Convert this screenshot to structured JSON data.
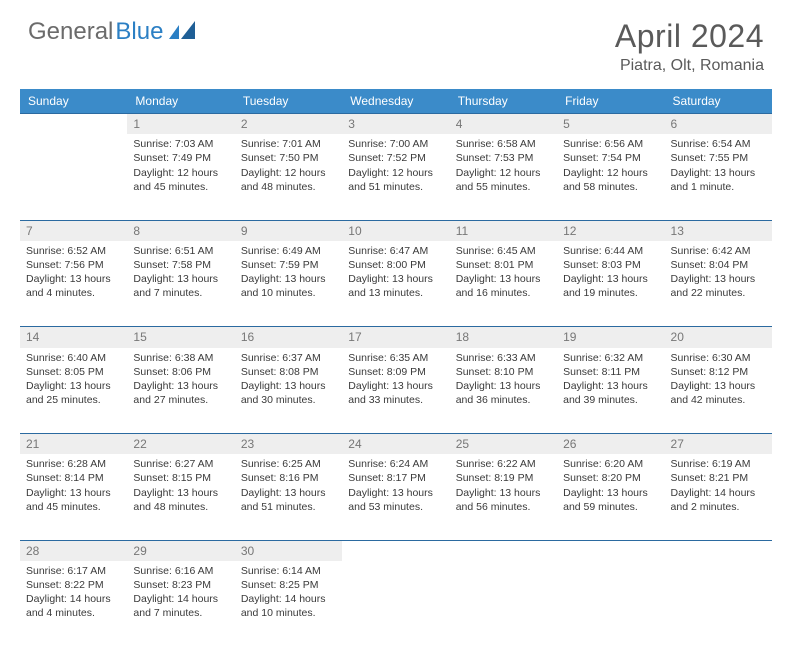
{
  "brand": {
    "part1": "General",
    "part2": "Blue"
  },
  "title": "April 2024",
  "location": "Piatra, Olt, Romania",
  "colors": {
    "header_bg": "#3b8bc9",
    "daynum_bg": "#eeeeee",
    "row_border": "#2b6aa0",
    "text": "#3a3a3a",
    "title_text": "#5a5a5a",
    "logo_gray": "#6b6b6b",
    "logo_blue": "#2b7fc4"
  },
  "weekdays": [
    "Sunday",
    "Monday",
    "Tuesday",
    "Wednesday",
    "Thursday",
    "Friday",
    "Saturday"
  ],
  "weeks": [
    {
      "nums": [
        "",
        "1",
        "2",
        "3",
        "4",
        "5",
        "6"
      ],
      "cells": [
        null,
        {
          "sr": "Sunrise: 7:03 AM",
          "ss": "Sunset: 7:49 PM",
          "d1": "Daylight: 12 hours",
          "d2": "and 45 minutes."
        },
        {
          "sr": "Sunrise: 7:01 AM",
          "ss": "Sunset: 7:50 PM",
          "d1": "Daylight: 12 hours",
          "d2": "and 48 minutes."
        },
        {
          "sr": "Sunrise: 7:00 AM",
          "ss": "Sunset: 7:52 PM",
          "d1": "Daylight: 12 hours",
          "d2": "and 51 minutes."
        },
        {
          "sr": "Sunrise: 6:58 AM",
          "ss": "Sunset: 7:53 PM",
          "d1": "Daylight: 12 hours",
          "d2": "and 55 minutes."
        },
        {
          "sr": "Sunrise: 6:56 AM",
          "ss": "Sunset: 7:54 PM",
          "d1": "Daylight: 12 hours",
          "d2": "and 58 minutes."
        },
        {
          "sr": "Sunrise: 6:54 AM",
          "ss": "Sunset: 7:55 PM",
          "d1": "Daylight: 13 hours",
          "d2": "and 1 minute."
        }
      ]
    },
    {
      "nums": [
        "7",
        "8",
        "9",
        "10",
        "11",
        "12",
        "13"
      ],
      "cells": [
        {
          "sr": "Sunrise: 6:52 AM",
          "ss": "Sunset: 7:56 PM",
          "d1": "Daylight: 13 hours",
          "d2": "and 4 minutes."
        },
        {
          "sr": "Sunrise: 6:51 AM",
          "ss": "Sunset: 7:58 PM",
          "d1": "Daylight: 13 hours",
          "d2": "and 7 minutes."
        },
        {
          "sr": "Sunrise: 6:49 AM",
          "ss": "Sunset: 7:59 PM",
          "d1": "Daylight: 13 hours",
          "d2": "and 10 minutes."
        },
        {
          "sr": "Sunrise: 6:47 AM",
          "ss": "Sunset: 8:00 PM",
          "d1": "Daylight: 13 hours",
          "d2": "and 13 minutes."
        },
        {
          "sr": "Sunrise: 6:45 AM",
          "ss": "Sunset: 8:01 PM",
          "d1": "Daylight: 13 hours",
          "d2": "and 16 minutes."
        },
        {
          "sr": "Sunrise: 6:44 AM",
          "ss": "Sunset: 8:03 PM",
          "d1": "Daylight: 13 hours",
          "d2": "and 19 minutes."
        },
        {
          "sr": "Sunrise: 6:42 AM",
          "ss": "Sunset: 8:04 PM",
          "d1": "Daylight: 13 hours",
          "d2": "and 22 minutes."
        }
      ]
    },
    {
      "nums": [
        "14",
        "15",
        "16",
        "17",
        "18",
        "19",
        "20"
      ],
      "cells": [
        {
          "sr": "Sunrise: 6:40 AM",
          "ss": "Sunset: 8:05 PM",
          "d1": "Daylight: 13 hours",
          "d2": "and 25 minutes."
        },
        {
          "sr": "Sunrise: 6:38 AM",
          "ss": "Sunset: 8:06 PM",
          "d1": "Daylight: 13 hours",
          "d2": "and 27 minutes."
        },
        {
          "sr": "Sunrise: 6:37 AM",
          "ss": "Sunset: 8:08 PM",
          "d1": "Daylight: 13 hours",
          "d2": "and 30 minutes."
        },
        {
          "sr": "Sunrise: 6:35 AM",
          "ss": "Sunset: 8:09 PM",
          "d1": "Daylight: 13 hours",
          "d2": "and 33 minutes."
        },
        {
          "sr": "Sunrise: 6:33 AM",
          "ss": "Sunset: 8:10 PM",
          "d1": "Daylight: 13 hours",
          "d2": "and 36 minutes."
        },
        {
          "sr": "Sunrise: 6:32 AM",
          "ss": "Sunset: 8:11 PM",
          "d1": "Daylight: 13 hours",
          "d2": "and 39 minutes."
        },
        {
          "sr": "Sunrise: 6:30 AM",
          "ss": "Sunset: 8:12 PM",
          "d1": "Daylight: 13 hours",
          "d2": "and 42 minutes."
        }
      ]
    },
    {
      "nums": [
        "21",
        "22",
        "23",
        "24",
        "25",
        "26",
        "27"
      ],
      "cells": [
        {
          "sr": "Sunrise: 6:28 AM",
          "ss": "Sunset: 8:14 PM",
          "d1": "Daylight: 13 hours",
          "d2": "and 45 minutes."
        },
        {
          "sr": "Sunrise: 6:27 AM",
          "ss": "Sunset: 8:15 PM",
          "d1": "Daylight: 13 hours",
          "d2": "and 48 minutes."
        },
        {
          "sr": "Sunrise: 6:25 AM",
          "ss": "Sunset: 8:16 PM",
          "d1": "Daylight: 13 hours",
          "d2": "and 51 minutes."
        },
        {
          "sr": "Sunrise: 6:24 AM",
          "ss": "Sunset: 8:17 PM",
          "d1": "Daylight: 13 hours",
          "d2": "and 53 minutes."
        },
        {
          "sr": "Sunrise: 6:22 AM",
          "ss": "Sunset: 8:19 PM",
          "d1": "Daylight: 13 hours",
          "d2": "and 56 minutes."
        },
        {
          "sr": "Sunrise: 6:20 AM",
          "ss": "Sunset: 8:20 PM",
          "d1": "Daylight: 13 hours",
          "d2": "and 59 minutes."
        },
        {
          "sr": "Sunrise: 6:19 AM",
          "ss": "Sunset: 8:21 PM",
          "d1": "Daylight: 14 hours",
          "d2": "and 2 minutes."
        }
      ]
    },
    {
      "nums": [
        "28",
        "29",
        "30",
        "",
        "",
        "",
        ""
      ],
      "cells": [
        {
          "sr": "Sunrise: 6:17 AM",
          "ss": "Sunset: 8:22 PM",
          "d1": "Daylight: 14 hours",
          "d2": "and 4 minutes."
        },
        {
          "sr": "Sunrise: 6:16 AM",
          "ss": "Sunset: 8:23 PM",
          "d1": "Daylight: 14 hours",
          "d2": "and 7 minutes."
        },
        {
          "sr": "Sunrise: 6:14 AM",
          "ss": "Sunset: 8:25 PM",
          "d1": "Daylight: 14 hours",
          "d2": "and 10 minutes."
        },
        null,
        null,
        null,
        null
      ]
    }
  ]
}
